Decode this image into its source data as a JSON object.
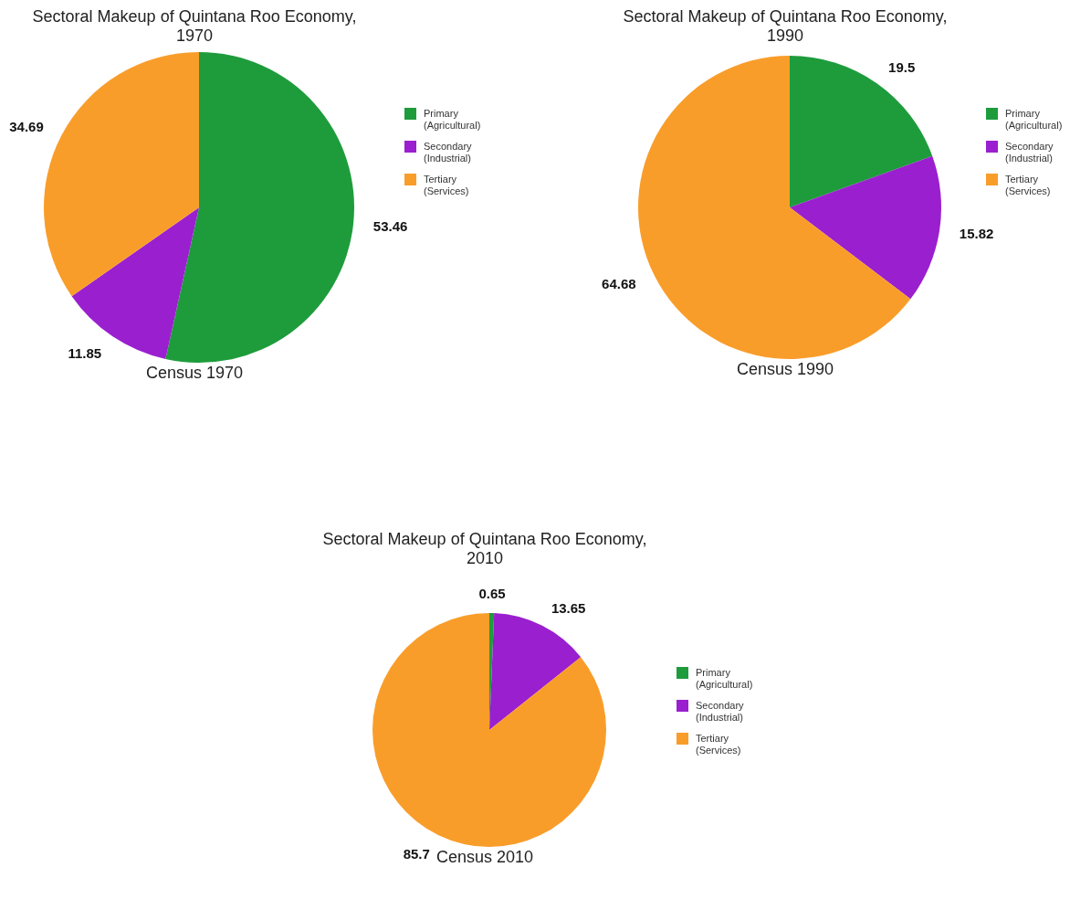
{
  "chart_data": [
    {
      "type": "pie",
      "title": "Sectoral Makeup of Quintana Roo Economy,\n1970",
      "categories": [
        "Primary (Agricultural)",
        "Secondary (Industrial)",
        "Tertiary (Services)"
      ],
      "values": [
        53.46,
        11.85,
        34.69
      ],
      "colors": [
        "#1e9c3c",
        "#9a1fcf",
        "#f99d2a"
      ],
      "data_labels": true,
      "legend": "right",
      "annotations": [
        "Census 1970"
      ]
    },
    {
      "type": "pie",
      "title": "Sectoral Makeup of Quintana Roo Economy,\n1990",
      "categories": [
        "Primary (Agricultural)",
        "Secondary (Industrial)",
        "Tertiary (Services)"
      ],
      "values": [
        19.5,
        15.82,
        64.68
      ],
      "colors": [
        "#1e9c3c",
        "#9a1fcf",
        "#f99d2a"
      ],
      "data_labels": true,
      "legend": "right",
      "annotations": [
        "Census 1990"
      ]
    },
    {
      "type": "pie",
      "title": "Sectoral Makeup of Quintana Roo Economy,\n2010",
      "categories": [
        "Primary (Agricultural)",
        "Secondary (Industrial)",
        "Tertiary (Services)"
      ],
      "values": [
        0.65,
        13.65,
        85.7
      ],
      "colors": [
        "#1e9c3c",
        "#9a1fcf",
        "#f99d2a"
      ],
      "data_labels": true,
      "legend": "right",
      "annotations": [
        "Census 2010"
      ]
    }
  ]
}
